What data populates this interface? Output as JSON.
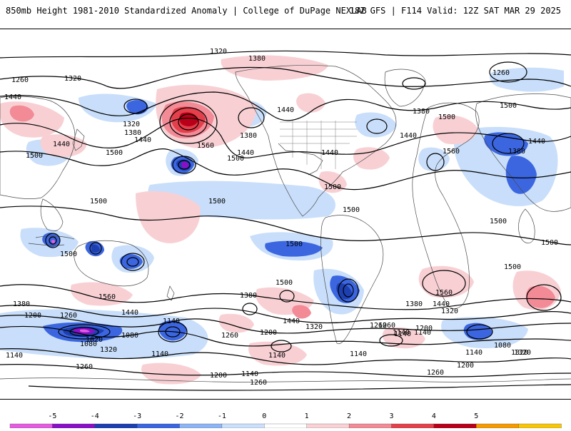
{
  "header": {
    "title": "850mb Height 1981-2010 Standardized Anomaly | College of DuPage NEXLAB",
    "run_info": "18Z GFS | F114 Valid: 12Z SAT MAR 29 2025"
  },
  "colorbar": {
    "ticks": [
      "-5",
      "-4",
      "-3",
      "-2",
      "-1",
      "0",
      "1",
      "2",
      "3",
      "4",
      "5"
    ],
    "colors": [
      "#e45ce0",
      "#8a10c8",
      "#1d3fb0",
      "#3b66e0",
      "#8db4f4",
      "#cde0fb",
      "#ffffff",
      "#f9d2d6",
      "#f28b96",
      "#e3404c",
      "#b80018",
      "#f59a00",
      "#f7c60a"
    ]
  },
  "contour_labels": [
    "1320",
    "1380",
    "1260",
    "1320",
    "1440",
    "1320",
    "1380",
    "1440",
    "1500",
    "1440",
    "1560",
    "1380",
    "1440",
    "1500",
    "1440",
    "1500",
    "1440",
    "1380",
    "1500",
    "1560",
    "1260",
    "1440",
    "1500",
    "1380",
    "1440",
    "1500",
    "1500",
    "1500",
    "1500",
    "1500",
    "1500",
    "1500",
    "1500",
    "1500",
    "1560",
    "1380",
    "1500",
    "1560",
    "1440",
    "1380",
    "1200",
    "1260",
    "1440",
    "1320",
    "1140",
    "1380",
    "1200",
    "1080",
    "1140",
    "1260",
    "1440",
    "1320",
    "1200",
    "1260",
    "1320",
    "1080",
    "1020",
    "1320",
    "1140",
    "1140",
    "1260",
    "1140",
    "1200",
    "1260",
    "1140",
    "1140",
    "1260",
    "1140",
    "1140",
    "1080",
    "1320",
    "1200",
    "1260",
    "1140"
  ],
  "anomaly_colors": {
    "neg1": "#c8defa",
    "neg2": "#3b66e0",
    "neg3": "#1d3fb0",
    "neg4": "#8a10c8",
    "neg5": "#e45ce0",
    "pos1": "#f8d0d4",
    "pos2": "#f28b96",
    "pos3": "#e3404c",
    "pos4": "#b80018"
  }
}
